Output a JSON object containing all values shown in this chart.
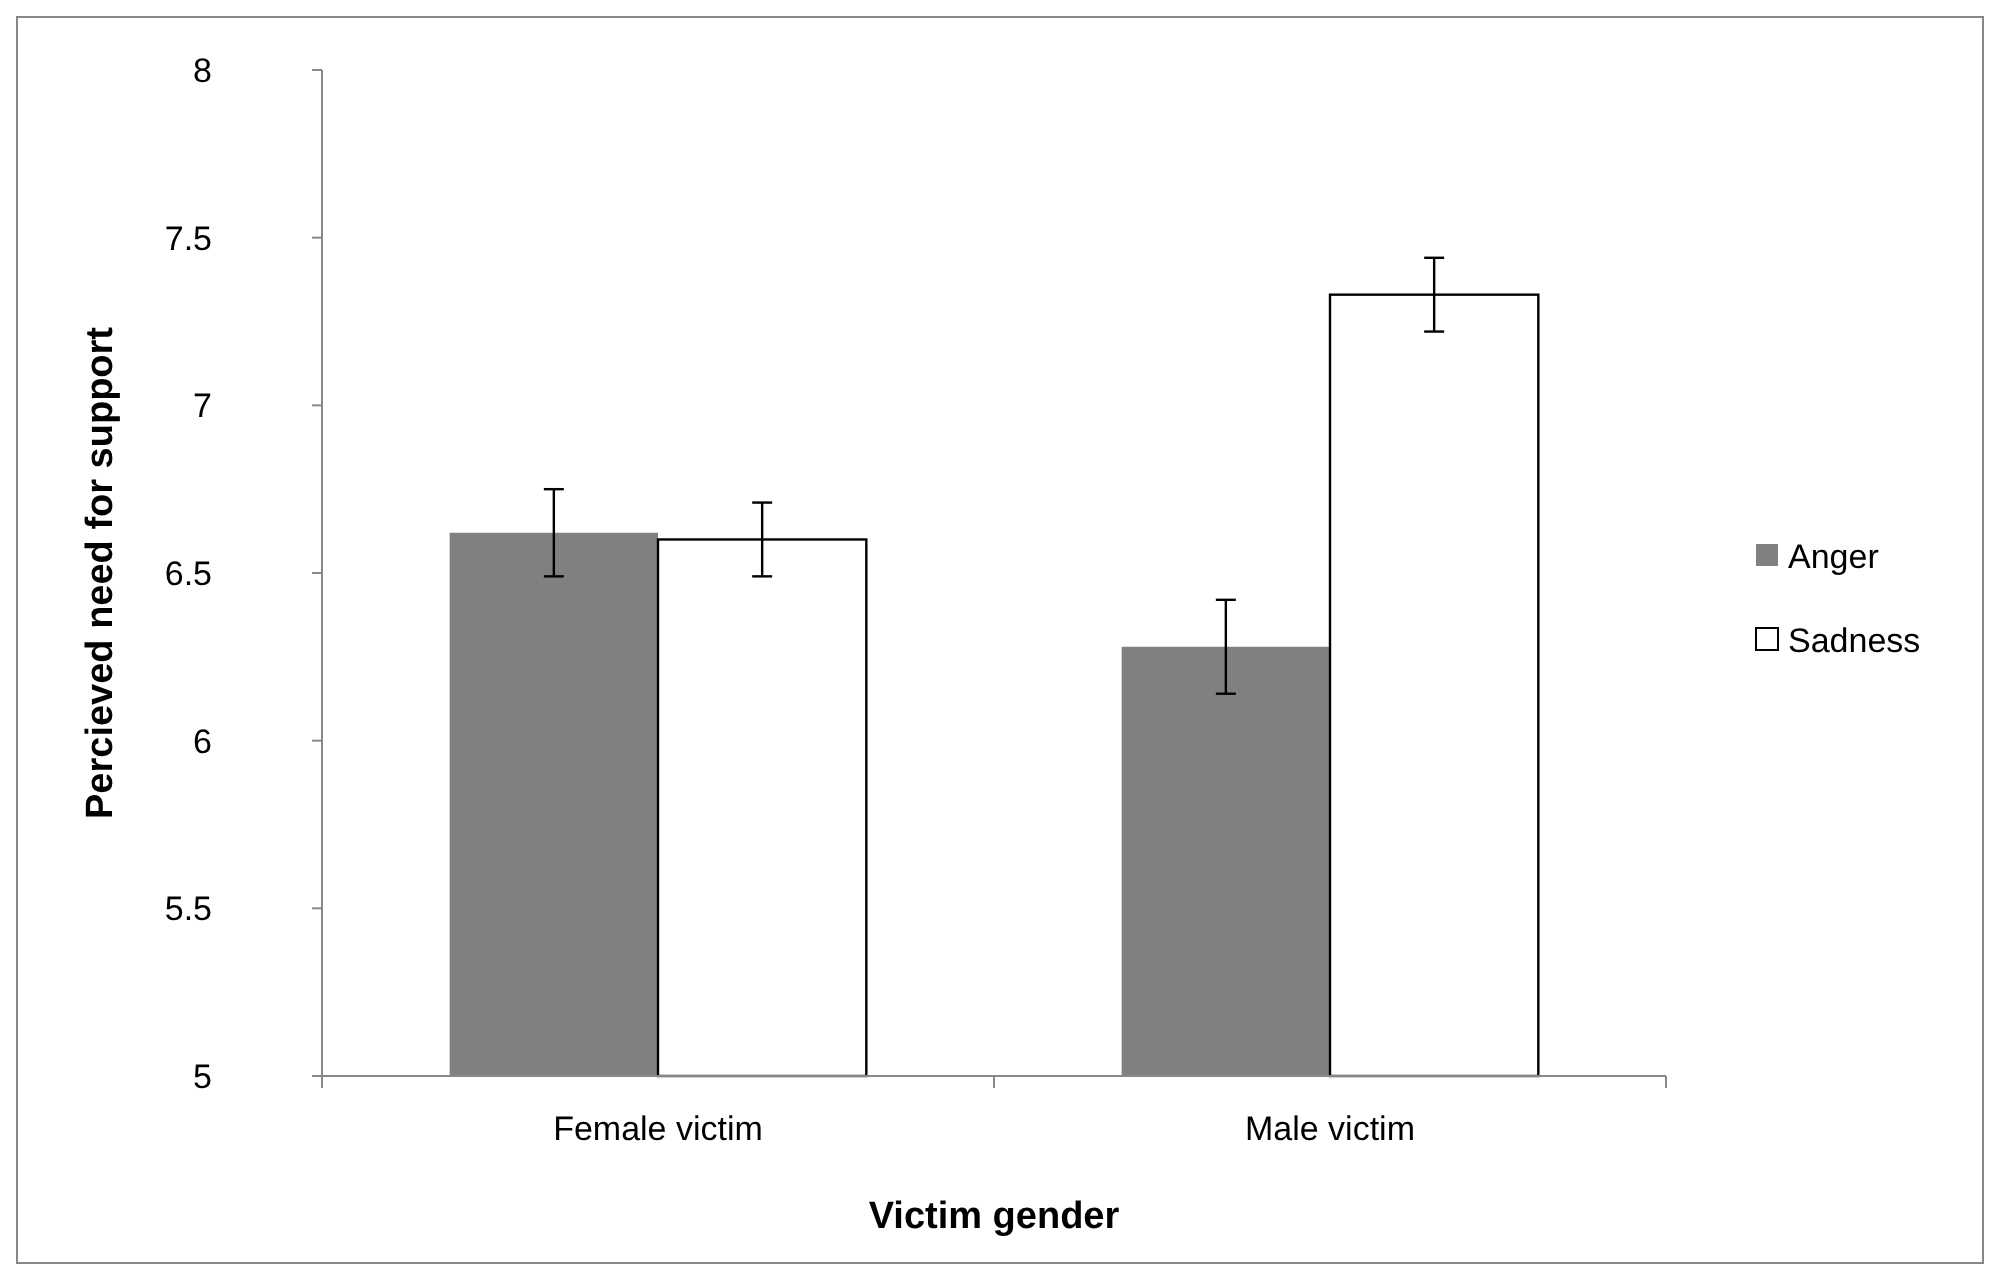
{
  "chart_data": {
    "type": "bar",
    "xlabel": "Victim gender",
    "ylabel": "Percieved need for support",
    "categories": [
      "Female victim",
      "Male victim"
    ],
    "series": [
      {
        "name": "Anger",
        "color": "#808080",
        "values": [
          6.62,
          6.28
        ],
        "errors": [
          [
            6.49,
            6.75
          ],
          [
            6.14,
            6.42
          ]
        ]
      },
      {
        "name": "Sadness",
        "color": "#ffffff",
        "values": [
          6.6,
          7.33
        ],
        "errors": [
          [
            6.49,
            6.71
          ],
          [
            7.22,
            7.44
          ]
        ]
      }
    ],
    "ylim": [
      5,
      8
    ],
    "yticks": [
      5,
      5.5,
      6,
      6.5,
      7,
      7.5,
      8
    ],
    "grid": false,
    "legend": "right"
  }
}
